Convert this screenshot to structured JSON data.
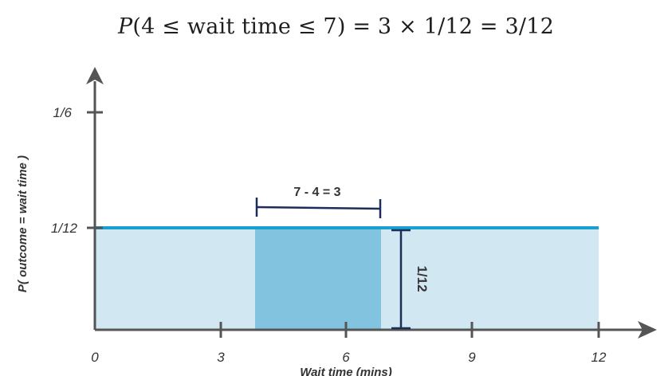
{
  "formula": {
    "var": "P",
    "open": "(4 ≤ wait time ≤ 7) = 3 × 1/12 = 3/12"
  },
  "axes": {
    "y_label": "P( outcome = wait time )",
    "x_label": "Wait time (mins)",
    "y_ticks": [
      "1/6",
      "1/12"
    ],
    "x_ticks": [
      "0",
      "3",
      "6",
      "9",
      "12"
    ]
  },
  "annotations": {
    "width_label": "7 - 4 = 3",
    "height_label": "1/12"
  },
  "chart_data": {
    "type": "area",
    "distribution": "uniform",
    "x_range": [
      0,
      12
    ],
    "density": "1/12",
    "highlight": {
      "from": 4,
      "to": 7
    },
    "xlabel": "Wait time (mins)",
    "ylabel": "P( outcome = wait time )"
  },
  "colors": {
    "axis": "#555555",
    "density_line": "#1aa0d0",
    "area_fill": "#d1e8f2",
    "highlight_fill": "#82c4e0",
    "bracket": "#1c2e57"
  }
}
